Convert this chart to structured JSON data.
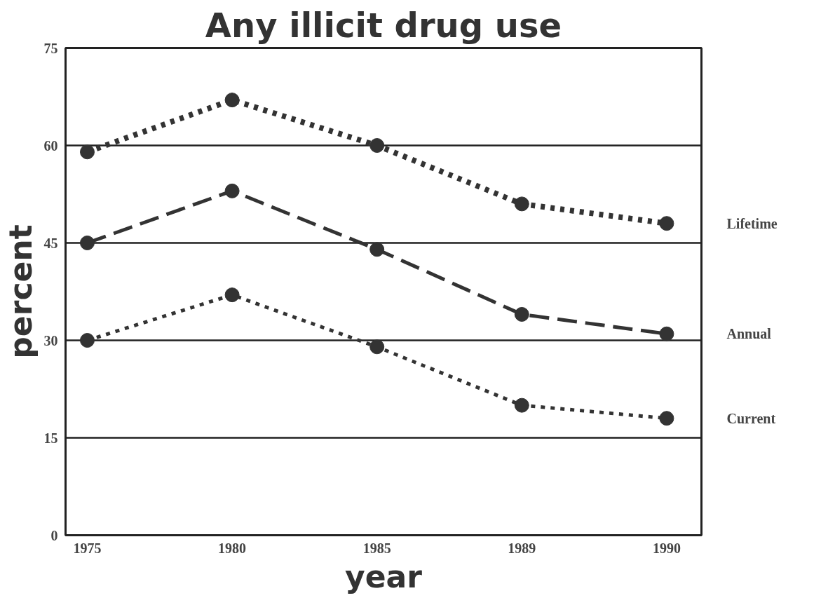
{
  "chart_data": {
    "type": "line",
    "title": "Any illicit drug use",
    "xlabel": "year",
    "ylabel": "percent",
    "categories": [
      "1975",
      "1980",
      "1985",
      "1989",
      "1990"
    ],
    "ylim": [
      0,
      75
    ],
    "yticks": [
      0,
      15,
      30,
      45,
      60,
      75
    ],
    "grid": "y",
    "legend": false,
    "marker": "circle",
    "series": [
      {
        "name": "Lifetime",
        "color": "#333333",
        "line_style": "dotted",
        "values": [
          59,
          67,
          60,
          51,
          48
        ]
      },
      {
        "name": "Annual",
        "color": "#333333",
        "line_style": "dashed",
        "values": [
          45,
          53,
          44,
          34,
          31
        ]
      },
      {
        "name": "Current",
        "color": "#333333",
        "line_style": "dotted",
        "values": [
          30,
          37,
          29,
          20,
          18
        ]
      }
    ]
  }
}
